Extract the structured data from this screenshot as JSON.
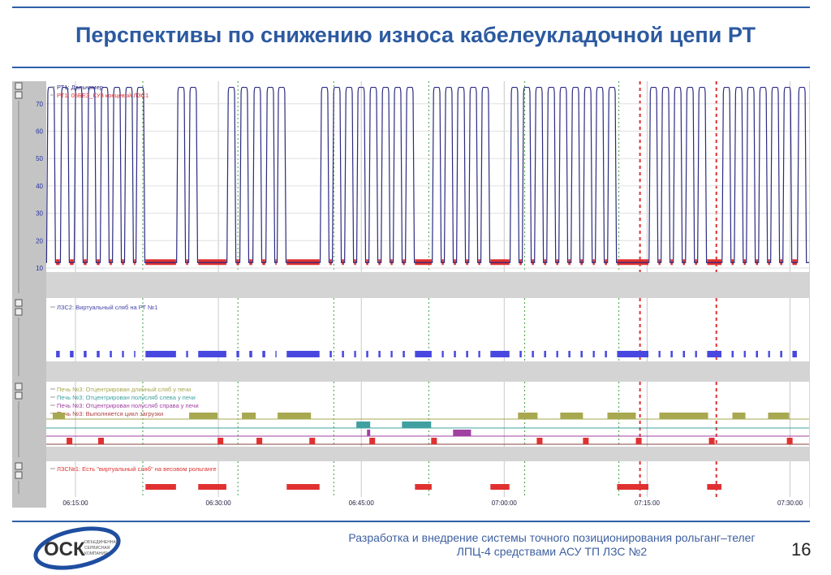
{
  "slide": {
    "title": "Перспективы по снижению износа кабелеукладочной цепи РТ",
    "footer_line1": "Разработка и внедрение системы точного позиционирования рольганг–телег",
    "footer_line2": "ЛПЦ-4 средствами АСУ ТП ЛЗС №2",
    "page_number": "16",
    "logo_text": "ОСК",
    "logo_subtext": "ОБЪЕДИНЕННАЯ СЕРВИСНАЯ КОМПАНИЯ"
  },
  "colors": {
    "accent": "#2c5aa0",
    "blue_series": "#2b2b80",
    "red_series": "#e03030",
    "bar_blue": "#4848e0",
    "olive": "#a8a850",
    "teal": "#40a0a0",
    "purple": "#a040a0",
    "grid_green": "#40a040"
  },
  "chart_data": {
    "type": "line",
    "xlim": [
      "06:11:56",
      "07:32:00"
    ],
    "x_ticks": [
      "06:15:00",
      "06:30:00",
      "06:45:00",
      "07:00:00",
      "07:15:00",
      "07:30:00"
    ],
    "grid": true,
    "markers_green": [
      "06:22:04",
      "06:32:03",
      "06:42:07",
      "06:52:05",
      "07:02:09",
      "07:12:02"
    ],
    "markers_red": [
      "07:14:15",
      "07:22:16"
    ],
    "panels": [
      {
        "ylim": [
          10,
          75
        ],
        "y_ticks": [
          "10",
          "20",
          "30",
          "40",
          "50",
          "60",
          "70"
        ],
        "legend": [
          "РТ1: Дальномер",
          "РТ1: 05БЕЗ_КУ3 концевой ЛЗС1"
        ],
        "pulse_high": 76,
        "pulse_low": 12,
        "pulse_times": [
          "06:12:26",
          "06:13:53",
          "06:15:20",
          "06:16:42",
          "06:18:04",
          "06:19:21",
          "06:20:37",
          "06:21:49",
          "06:26:05",
          "06:27:21",
          "06:31:22",
          "06:32:43",
          "06:34:05",
          "06:35:27",
          "06:36:38",
          "06:41:09",
          "06:42:26",
          "06:43:43",
          "06:44:59",
          "06:46:16",
          "06:47:33",
          "06:48:49",
          "06:50:06",
          "06:52:55",
          "06:54:11",
          "06:55:28",
          "06:56:45",
          "06:58:01",
          "07:01:05",
          "07:02:22",
          "07:03:39",
          "07:04:56",
          "07:06:12",
          "07:07:29",
          "07:08:46",
          "07:10:02",
          "07:11:19",
          "07:15:40",
          "07:16:56",
          "07:18:13",
          "07:19:30",
          "07:20:46",
          "07:23:20",
          "07:24:37",
          "07:25:53",
          "07:27:10",
          "07:28:26",
          "07:29:43",
          "07:31:15"
        ]
      },
      {
        "legend": [
          "ЛЗС2: Виртуальный сляб на РТ №1"
        ]
      },
      {
        "legend": [
          "Печь №3: Отцентрирован длинный сляб у печи",
          "Печь №3: Отцентрирован полусляб слева у печи",
          "Печь №3: Отцентрирован полусляб справа у печи",
          "Печь №3: Выполняется цикл загрузки"
        ],
        "long_slab": [
          [
            "06:12:37",
            "06:13:54"
          ],
          [
            "06:26:56",
            "06:29:55"
          ],
          [
            "06:32:28",
            "06:33:55"
          ],
          [
            "06:36:13",
            "06:39:43"
          ],
          [
            "07:01:27",
            "07:03:30"
          ],
          [
            "07:05:53",
            "07:08:16"
          ],
          [
            "07:10:50",
            "07:13:49"
          ],
          [
            "07:16:17",
            "07:21:24"
          ],
          [
            "07:23:57",
            "07:25:19"
          ],
          [
            "07:27:42",
            "07:29:55"
          ]
        ],
        "half_left": [
          [
            "06:44:29",
            "06:45:56"
          ],
          [
            "06:49:16",
            "06:52:20"
          ]
        ],
        "half_right": [
          [
            "06:45:36",
            "06:45:56"
          ],
          [
            "06:54:38",
            "06:56:31"
          ]
        ],
        "load_cycle_starts": [
          "06:14:04",
          "06:17:23",
          "06:29:55",
          "06:34:00",
          "06:39:33",
          "06:45:51",
          "06:52:20",
          "07:03:25",
          "07:08:16",
          "07:13:49",
          "07:21:29",
          "07:29:40"
        ],
        "load_cycle_duration_s": 36
      },
      {
        "legend": [
          "ЛЗС№1: Есть \"виртуальный сляб\" на весовом рольганге"
        ]
      }
    ]
  }
}
